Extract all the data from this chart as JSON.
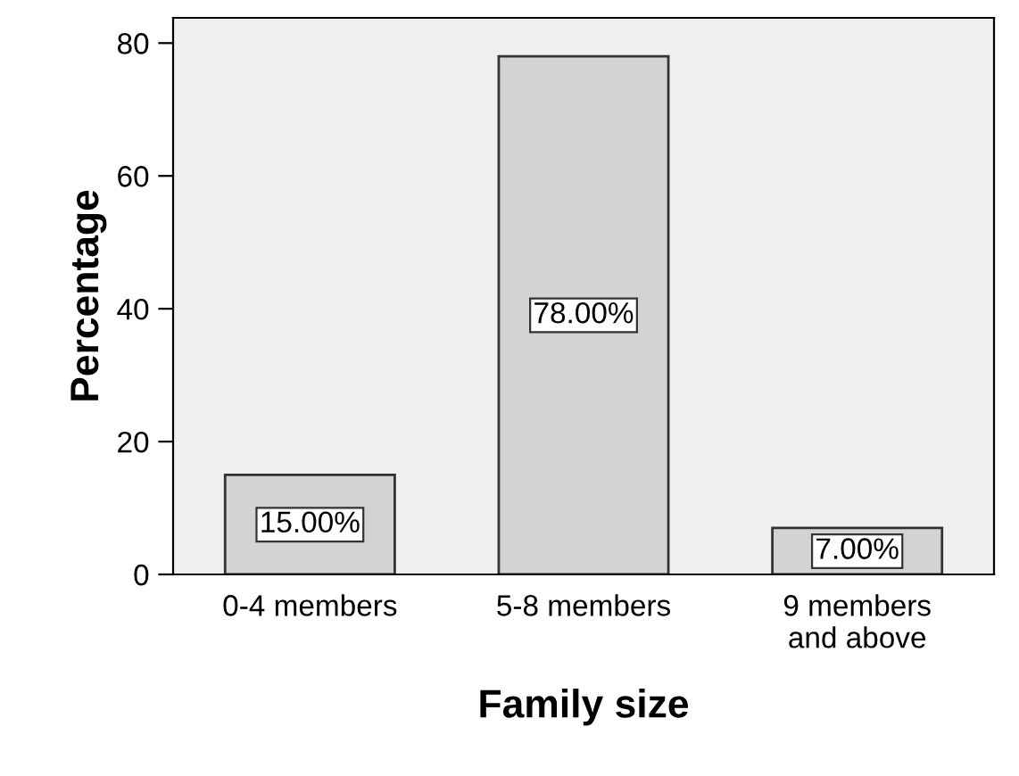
{
  "chart_data": {
    "type": "bar",
    "xlabel": "Family size",
    "ylabel": "Percentage",
    "categories": [
      "0-4 members",
      "5-8 members",
      "9 members\nand above"
    ],
    "values": [
      15,
      78,
      7
    ],
    "value_labels": [
      "15.00%",
      "78.00%",
      "7.00%"
    ],
    "color": "#d3d3d3",
    "ylim": [
      0,
      83.8
    ],
    "yticks": [
      0,
      20,
      40,
      60,
      80
    ],
    "grid": false
  }
}
